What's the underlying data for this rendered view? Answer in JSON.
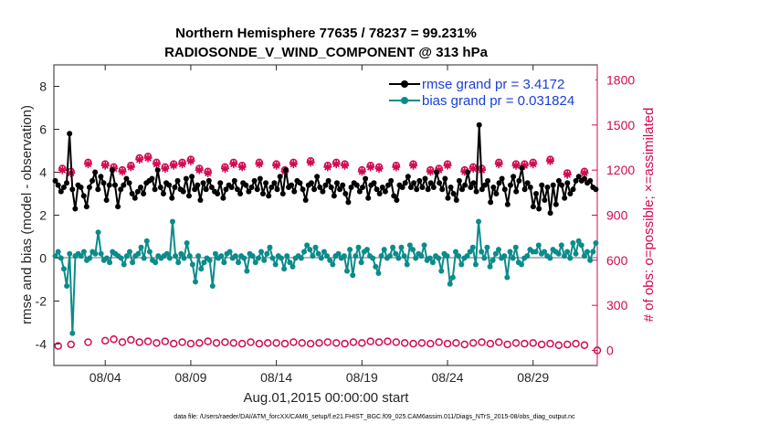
{
  "colors": {
    "rmse": "#000000",
    "bias": "#0c8b8b",
    "obs": "#d10a52",
    "zero_line": "#b4b4b4",
    "legend_text": "#1a3fd6"
  },
  "chart_data": {
    "type": "line",
    "title_line1": "Northern Hemisphere 77635 / 78237 = 99.231%",
    "title_line2": "RADIOSONDE_V_WIND_COMPONENT @ 313 hPa",
    "xlabel": "Aug.01,2015 00:00:00 start",
    "ylabel_left": "rmse and bias (model - observation)",
    "ylabel_right": "# of obs: o=possible; ×=assimilated",
    "footnote": "data file: /Users/raeder/DAI/ATM_forcXX/CAM6_setup/f.e21.FHIST_BGC.f09_025.CAM6assim.011/Diags_NTrS_2015-08/obs_diag_output.nc",
    "x_range_days": [
      0,
      31.75
    ],
    "ylim_left": [
      -5,
      9
    ],
    "ylim_right": [
      -100,
      1900
    ],
    "yticks_left": [
      "-4",
      "-2",
      "0",
      "2",
      "4",
      "6",
      "8"
    ],
    "yticks_right": [
      "0",
      "300",
      "600",
      "900",
      "1200",
      "1500",
      "1800"
    ],
    "xticks": [
      "08/04",
      "08/09",
      "08/14",
      "08/19",
      "08/24",
      "08/29"
    ],
    "xtick_days": [
      3,
      8,
      13,
      18,
      23,
      28
    ],
    "grid": false,
    "legend_position": "top-right",
    "series": [
      {
        "name": "rmse grand pr = 3.4172",
        "axis": "left",
        "marker": "filled-circle",
        "values": [
          3.6,
          3.4,
          3.1,
          3.3,
          3.5,
          5.8,
          3.2,
          2.3,
          3.4,
          3.3,
          2.9,
          2.4,
          3.3,
          3.6,
          4.0,
          3.2,
          3.8,
          3.5,
          2.7,
          3.4,
          4.1,
          3.4,
          2.4,
          3.2,
          3.4,
          3.7,
          3.5,
          3.0,
          2.8,
          3.1,
          3.3,
          3.0,
          3.5,
          3.6,
          3.7,
          3.2,
          4.1,
          3.3,
          3.0,
          3.5,
          3.4,
          2.8,
          3.3,
          3.6,
          3.2,
          3.1,
          3.7,
          2.9,
          3.8,
          3.2,
          3.4,
          2.7,
          3.5,
          3.2,
          3.6,
          3.3,
          3.1,
          3.0,
          3.5,
          2.8,
          3.2,
          3.4,
          3.3,
          3.6,
          3.2,
          3.0,
          3.5,
          3.4,
          3.1,
          3.3,
          3.6,
          3.2,
          3.7,
          3.0,
          3.5,
          2.9,
          3.3,
          3.5,
          3.2,
          3.8,
          3.0,
          4.1,
          3.3,
          3.4,
          3.1,
          3.6,
          3.5,
          3.2,
          2.7,
          3.4,
          3.5,
          3.2,
          3.8,
          3.3,
          3.1,
          3.4,
          3.6,
          3.3,
          2.9,
          3.5,
          3.2,
          3.4,
          3.0,
          2.6,
          3.3,
          3.5,
          3.4,
          3.1,
          3.3,
          3.7,
          2.8,
          3.4,
          3.5,
          3.2,
          3.0,
          3.3,
          3.1,
          3.4,
          3.6,
          2.9,
          2.7,
          3.4,
          3.3,
          3.5,
          3.8,
          3.3,
          3.5,
          3.2,
          3.6,
          3.3,
          3.7,
          3.2,
          3.5,
          3.3,
          4.0,
          3.5,
          3.2,
          3.7,
          2.8,
          3.3,
          3.0,
          2.7,
          3.6,
          3.2,
          3.4,
          4.0,
          3.3,
          3.5,
          3.1,
          6.2,
          3.2,
          3.4,
          3.6,
          2.6,
          3.3,
          3.0,
          3.5,
          3.7,
          3.2,
          2.5,
          3.4,
          3.8,
          3.1,
          3.6,
          4.2,
          3.2,
          3.5,
          3.3,
          2.4,
          3.0,
          2.3,
          3.4,
          2.7,
          3.3,
          2.1,
          3.4,
          2.5,
          3.6,
          3.4,
          2.8,
          3.5,
          3.0,
          3.2,
          3.6,
          3.8,
          3.6,
          3.7,
          3.5,
          3.6,
          3.3,
          3.2
        ]
      },
      {
        "name": "bias grand pr = 0.031824",
        "axis": "left",
        "marker": "filled-circle",
        "values": [
          0.1,
          0.3,
          0.0,
          -0.5,
          -1.3,
          0.2,
          -3.5,
          0.1,
          0.2,
          0.1,
          0.3,
          -0.1,
          0.0,
          0.3,
          0.2,
          1.2,
          0.2,
          -0.1,
          0.0,
          -0.2,
          0.3,
          0.2,
          0.1,
          0.0,
          -0.3,
          0.1,
          0.3,
          -0.2,
          0.1,
          0.2,
          0.5,
          0.0,
          0.8,
          0.3,
          -0.1,
          -0.2,
          0.1,
          0.0,
          0.1,
          0.2,
          0.0,
          1.7,
          0.1,
          -0.2,
          0.2,
          0.0,
          0.7,
          0.1,
          -0.3,
          -1.1,
          0.1,
          -0.5,
          -0.2,
          0.0,
          -0.1,
          -1.3,
          0.2,
          0.0,
          0.1,
          -0.2,
          0.2,
          0.3,
          0.0,
          0.1,
          -0.2,
          0.1,
          0.0,
          -0.6,
          0.2,
          0.1,
          -0.2,
          0.0,
          0.3,
          -0.1,
          0.2,
          0.5,
          0.0,
          -0.3,
          0.1,
          0.0,
          -0.5,
          0.1,
          -0.2,
          -0.4,
          0.0,
          0.1,
          0.0,
          0.3,
          0.6,
          0.4,
          0.1,
          0.5,
          0.2,
          0.0,
          0.3,
          0.1,
          -0.1,
          -0.3,
          0.1,
          0.2,
          0.0,
          0.1,
          -0.6,
          0.4,
          -0.8,
          0.1,
          0.5,
          -0.2,
          0.3,
          0.4,
          0.1,
          0.0,
          -0.4,
          -0.7,
          0.1,
          0.4,
          0.0,
          0.1,
          0.5,
          0.2,
          0.0,
          0.5,
          0.1,
          -0.3,
          0.6,
          0.4,
          0.0,
          0.2,
          0.1,
          0.6,
          -0.1,
          0.0,
          -0.2,
          0.1,
          0.0,
          -0.6,
          0.2,
          0.1,
          -1.2,
          -0.9,
          0.3,
          0.1,
          -0.3,
          0.0,
          0.1,
          0.3,
          0.5,
          -0.3,
          1.7,
          0.3,
          0.0,
          0.5,
          -0.4,
          -0.1,
          0.2,
          0.4,
          0.0,
          0.1,
          -0.9,
          0.3,
          0.0,
          0.5,
          -0.2,
          -0.3,
          0.0,
          0.1,
          0.4,
          0.3,
          0.3,
          0.6,
          0.2,
          0.3,
          0.1,
          0.0,
          0.4,
          0.3,
          0.2,
          0.6,
          0.1,
          0.3,
          0.0,
          0.7,
          0.2,
          0.8,
          0.6,
          0.1,
          0.3,
          -0.1,
          0.3,
          0.7
        ]
      },
      {
        "name": "obs possible",
        "axis": "right",
        "marker": "circle",
        "days": [
          0.5,
          1,
          2,
          3,
          3.5,
          4,
          4.5,
          5,
          5.5,
          6,
          6.5,
          7,
          7.5,
          8,
          8.5,
          9,
          10,
          10.5,
          11,
          12,
          13,
          13.5,
          14,
          15,
          16,
          16.5,
          17,
          18,
          18.5,
          19,
          20,
          21,
          22,
          22.5,
          23,
          24,
          24.5,
          25,
          26,
          27,
          27.5,
          28,
          29,
          30,
          31
        ],
        "values": [
          1210,
          1190,
          1250,
          1240,
          1220,
          1200,
          1230,
          1280,
          1290,
          1250,
          1220,
          1240,
          1250,
          1270,
          1210,
          1190,
          1220,
          1250,
          1230,
          1250,
          1240,
          1200,
          1250,
          1260,
          1230,
          1250,
          1240,
          1200,
          1230,
          1220,
          1230,
          1240,
          1200,
          1210,
          1240,
          1200,
          1220,
          1210,
          1250,
          1240,
          1240,
          1250,
          1270,
          1180,
          1190
        ]
      },
      {
        "name": "obs assimilated",
        "axis": "right",
        "marker": "star",
        "days": [
          0.5,
          1,
          2,
          3,
          3.5,
          4,
          4.5,
          5,
          5.5,
          6,
          6.5,
          7,
          7.5,
          8,
          8.5,
          9,
          10,
          10.5,
          11,
          12,
          13,
          13.5,
          14,
          15,
          16,
          16.5,
          17,
          18,
          18.5,
          19,
          20,
          21,
          22,
          22.5,
          23,
          24,
          24.5,
          25,
          26,
          27,
          27.5,
          28,
          29,
          30,
          31
        ],
        "values": [
          1200,
          1180,
          1240,
          1230,
          1210,
          1190,
          1220,
          1270,
          1280,
          1240,
          1210,
          1230,
          1240,
          1260,
          1200,
          1180,
          1210,
          1240,
          1220,
          1240,
          1230,
          1190,
          1240,
          1250,
          1220,
          1240,
          1230,
          1190,
          1220,
          1210,
          1220,
          1230,
          1190,
          1200,
          1230,
          1190,
          1210,
          1200,
          1240,
          1230,
          1230,
          1240,
          1260,
          1170,
          1180
        ]
      },
      {
        "name": "obs possible (00Z/12Z)",
        "axis": "right",
        "marker": "circle",
        "days": [
          0.25,
          1,
          2,
          3,
          3.5,
          4,
          4.5,
          5,
          5.5,
          6,
          6.5,
          7,
          7.5,
          8,
          8.5,
          9,
          9.5,
          10,
          10.5,
          11,
          11.5,
          12,
          12.5,
          13,
          13.5,
          14,
          14.5,
          15,
          15.5,
          16,
          16.5,
          17,
          17.5,
          18,
          18.5,
          19,
          19.5,
          20,
          20.5,
          21,
          21.5,
          22,
          22.5,
          23,
          23.5,
          24,
          24.5,
          25,
          25.5,
          26,
          26.5,
          27,
          27.5,
          28,
          28.5,
          29,
          29.5,
          30,
          30.5,
          31,
          31.75
        ],
        "values": [
          30,
          40,
          55,
          65,
          75,
          55,
          70,
          55,
          60,
          50,
          60,
          45,
          55,
          45,
          50,
          60,
          50,
          55,
          50,
          45,
          55,
          45,
          50,
          50,
          45,
          55,
          50,
          45,
          50,
          55,
          50,
          45,
          55,
          50,
          60,
          55,
          60,
          55,
          50,
          45,
          50,
          45,
          55,
          45,
          50,
          40,
          50,
          55,
          45,
          55,
          40,
          50,
          45,
          50,
          40,
          45,
          35,
          40,
          45,
          35,
          0
        ]
      }
    ]
  }
}
